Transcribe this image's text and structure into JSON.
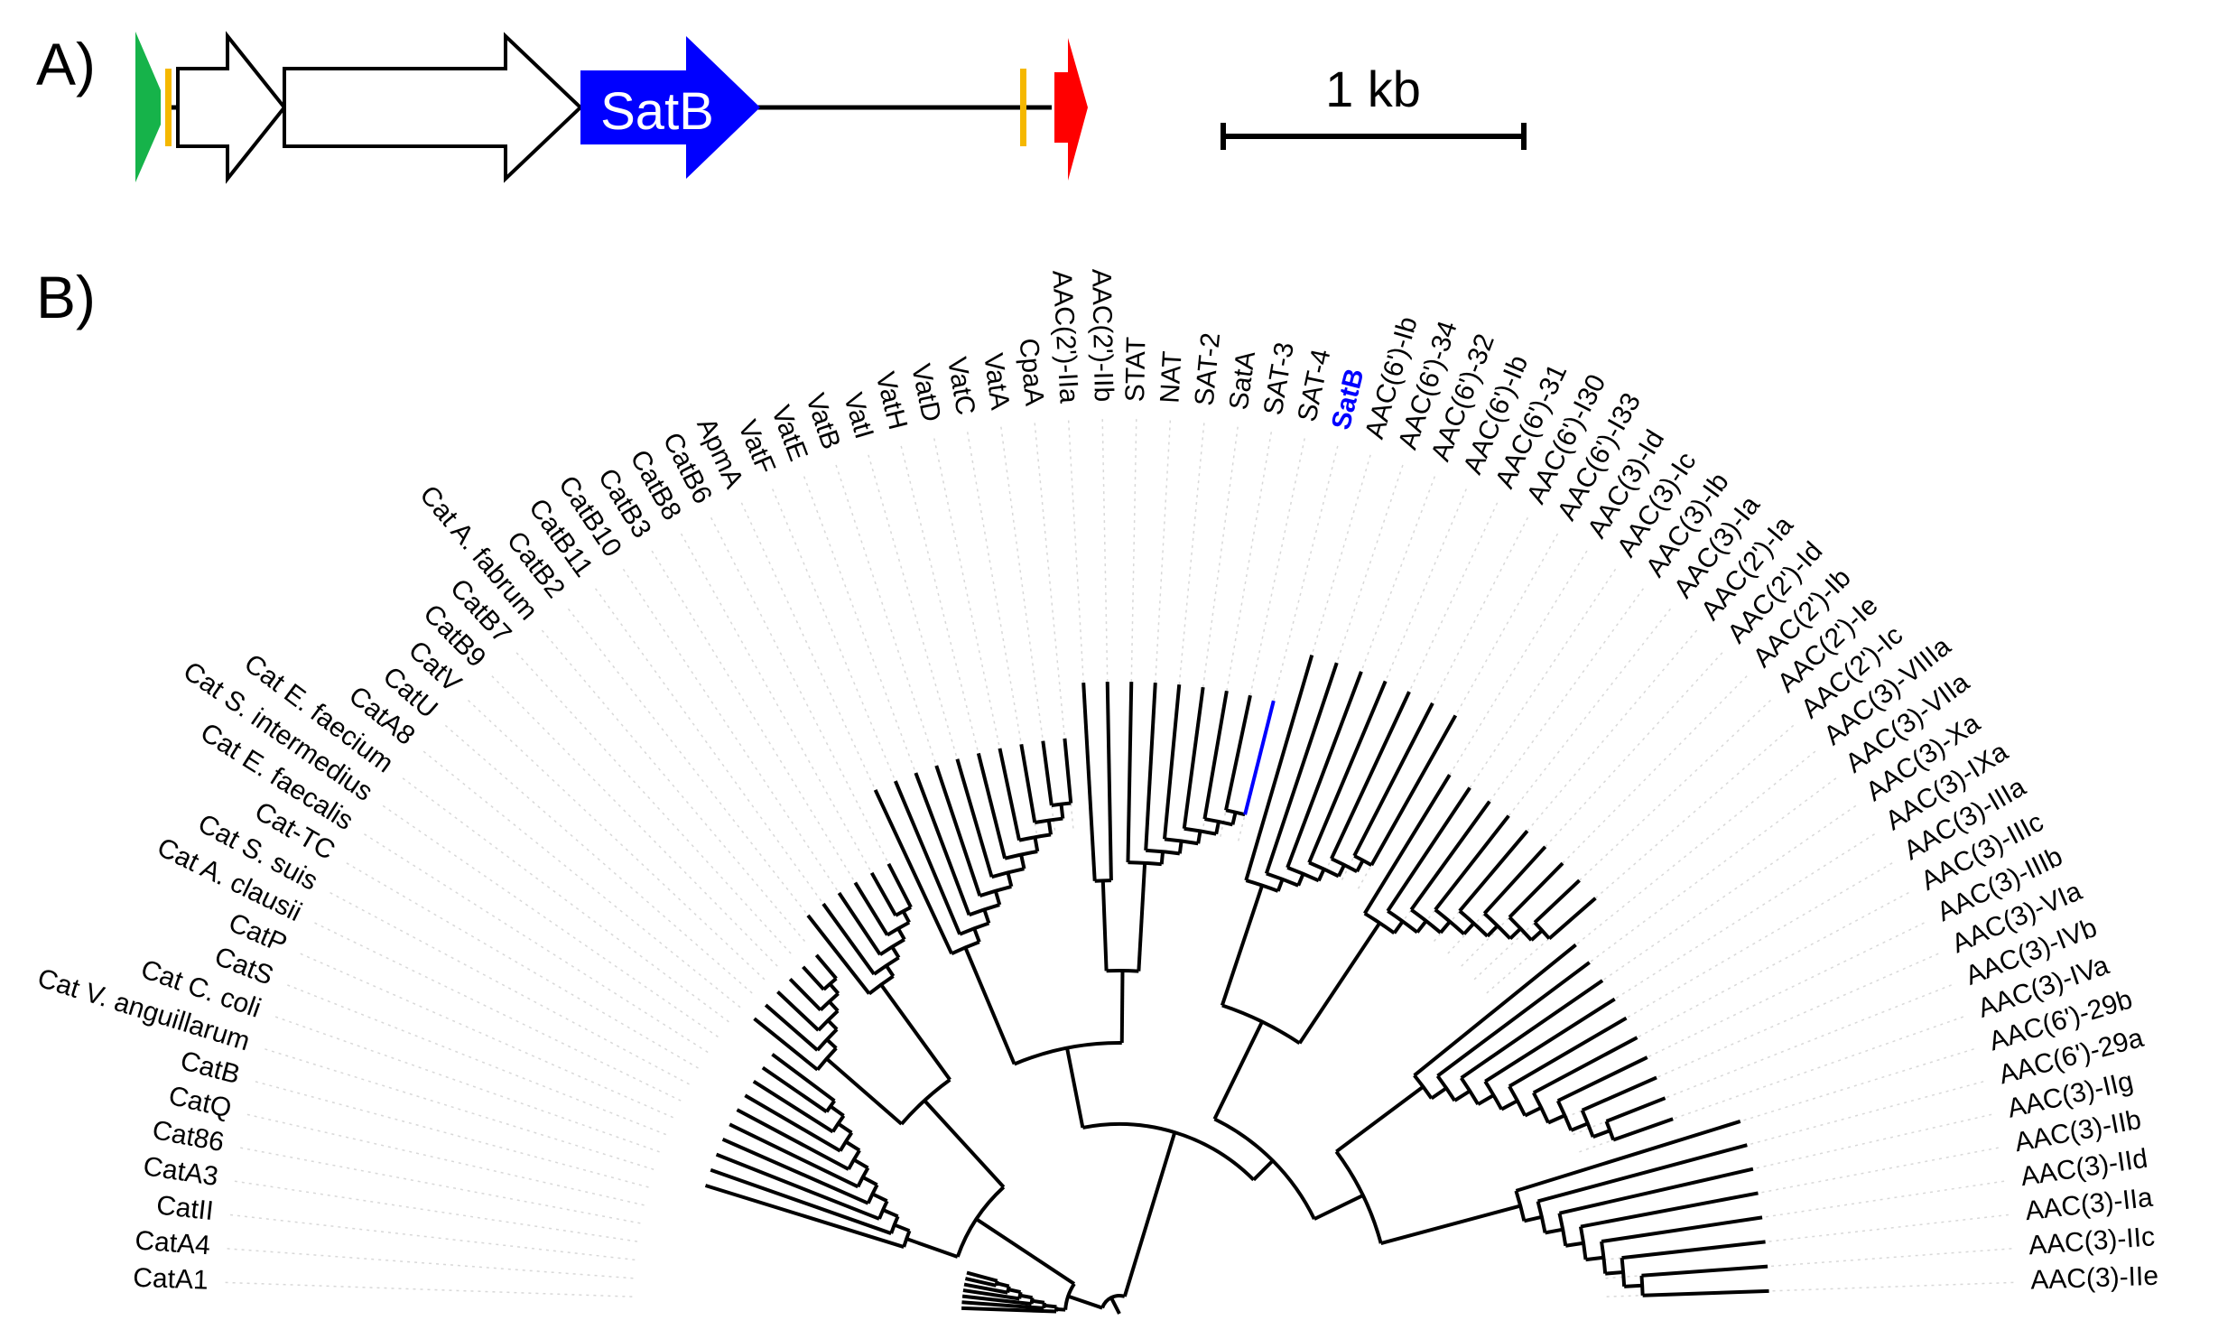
{
  "panel_a": {
    "panel_label": "A)",
    "gene_label": "SatB",
    "scale_label": "1 kb",
    "colors": {
      "satb": "#0000ff",
      "green_element": "#16b34a",
      "red_element": "#ff0000",
      "orange_marker": "#f5b800",
      "outline": "#000000"
    }
  },
  "panel_b": {
    "panel_label": "B)",
    "highlight": "SatB",
    "highlight_color": "#0000ff",
    "leaves_left_to_right": [
      "CatA1",
      "CatA4",
      "CatII",
      "CatA3",
      "Cat86",
      "CatQ",
      "CatB",
      "Cat V. anguillarum",
      "Cat C. coli",
      "CatS",
      "CatP",
      "Cat A. clausii",
      "Cat S. suis",
      "Cat-TC",
      "Cat E. faecalis",
      "Cat S. intermedius",
      "Cat E. faecium",
      "CatA8",
      "CatU",
      "CatV",
      "CatB9",
      "CatB7",
      "Cat A. fabrum",
      "CatB2",
      "CatB11",
      "CatB10",
      "CatB3",
      "CatB8",
      "CatB6",
      "ApmA",
      "VatF",
      "VatE",
      "VatB",
      "VatI",
      "VatH",
      "VatD",
      "VatC",
      "VatA",
      "CpaA",
      "AAC(2')-IIa",
      "AAC(2')-IIb",
      "STAT",
      "NAT",
      "SAT-2",
      "SatA",
      "SAT-3",
      "SAT-4",
      "SatB",
      "AAC(6')-Ib",
      "AAC(6')-34",
      "AAC(6')-32",
      "AAC(6')-Ib",
      "AAC(6')-31",
      "AAC(6')-I30",
      "AAC(6')-I33",
      "AAC(3)-Id",
      "AAC(3)-Ic",
      "AAC(3)-Ib",
      "AAC(3)-Ia",
      "AAC(2')-Ia",
      "AAC(2')-Id",
      "AAC(2')-Ib",
      "AAC(2')-Ie",
      "AAC(2')-Ic",
      "AAC(3)-VIIIa",
      "AAC(3)-VIIa",
      "AAC(3)-Xa",
      "AAC(3)-IXa",
      "AAC(3)-IIIa",
      "AAC(3)-IIIc",
      "AAC(3)-IIIb",
      "AAC(3)-VIa",
      "AAC(3)-IVb",
      "AAC(3)-IVa",
      "AAC(6')-29b",
      "AAC(6')-29a",
      "AAC(3)-IIg",
      "AAC(3)-IIb",
      "AAC(3)-IId",
      "AAC(3)-IIa",
      "AAC(3)-IIc",
      "AAC(3)-IIe"
    ]
  }
}
